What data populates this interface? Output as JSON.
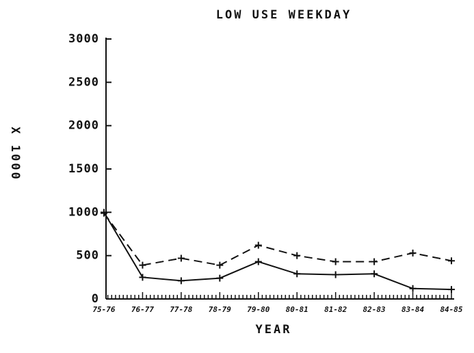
{
  "chart_data": {
    "type": "line",
    "title": "LOW USE WEEKDAY",
    "x_label": "YEAR",
    "y_label": "X 1000",
    "categories": [
      "75-76",
      "76-77",
      "77-78",
      "78-79",
      "79-80",
      "80-81",
      "81-82",
      "82-83",
      "83-84",
      "84-85"
    ],
    "series": [
      {
        "style": "solid",
        "color": "#111111",
        "values": [
          1000,
          250,
          210,
          240,
          430,
          290,
          280,
          290,
          120,
          110
        ]
      },
      {
        "style": "dashed",
        "color": "#111111",
        "values": [
          990,
          390,
          470,
          390,
          620,
          500,
          430,
          430,
          530,
          440
        ]
      }
    ],
    "ylim": [
      0,
      3000
    ],
    "yticks": [
      0,
      500,
      1000,
      1500,
      2000,
      2500,
      3000
    ],
    "grid": false
  }
}
